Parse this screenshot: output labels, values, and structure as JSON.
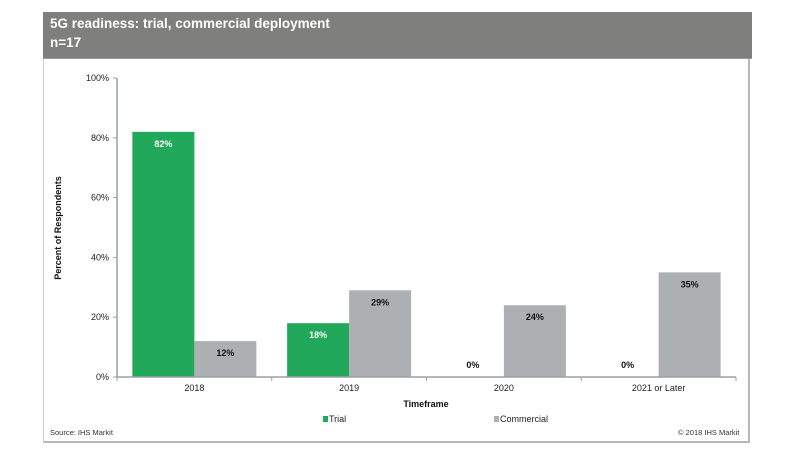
{
  "header": {
    "title": "5G readiness: trial, commercial deployment",
    "subtitle": "n=17"
  },
  "footer": {
    "source": "Source:  IHS Markit",
    "copyright": "© 2018  IHS Markit"
  },
  "colors": {
    "trial": "#21a85a",
    "commercial": "#adb0b2",
    "header_bg": "#7f807e",
    "axis": "#9aa0a6"
  },
  "chart_data": {
    "type": "bar",
    "title": "5G readiness: trial, commercial deployment",
    "subtitle": "n=17",
    "xlabel": "Timeframe",
    "ylabel": "Percent of Respondents",
    "categories": [
      "2018",
      "2019",
      "2020",
      "2021 or Later"
    ],
    "series": [
      {
        "name": "Trial",
        "values": [
          82,
          18,
          0,
          0
        ],
        "labels": [
          "82%",
          "18%",
          "0%",
          "0%"
        ]
      },
      {
        "name": "Commercial",
        "values": [
          12,
          29,
          24,
          35
        ],
        "labels": [
          "12%",
          "29%",
          "24%",
          "35%"
        ]
      }
    ],
    "ylim": [
      0,
      100
    ],
    "yticks": [
      0,
      20,
      40,
      60,
      80,
      100
    ],
    "ytick_labels": [
      "0%",
      "20%",
      "40%",
      "60%",
      "80%",
      "100%"
    ],
    "grid": false,
    "legend": [
      "Trial",
      "Commercial"
    ],
    "legend_position": "bottom"
  }
}
